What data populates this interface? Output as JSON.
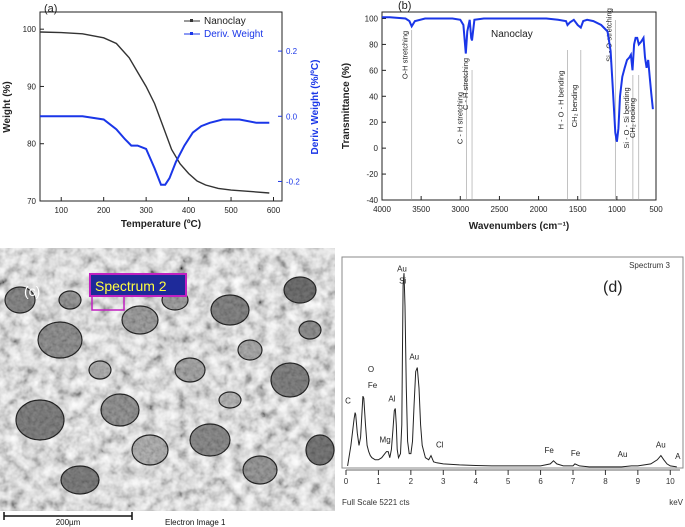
{
  "colors": {
    "black": "#222222",
    "blue": "#1a36e8",
    "darkblue": "#0a1fd0",
    "magenta": "#b000b0",
    "sem_bg": "#5a5a5a"
  },
  "chart_data": [
    {
      "panel_label": "(a)",
      "type": "line",
      "xlabel": "Temperature (ºC)",
      "ylabel": "Weight (%)",
      "y2label": "Deriv. Weight (%/ºC)",
      "xlim": [
        50,
        620
      ],
      "ylim": [
        70,
        103
      ],
      "y2lim": [
        -0.26,
        0.32
      ],
      "xticks": [
        100,
        200,
        300,
        400,
        500,
        600
      ],
      "yticks": [
        70,
        80,
        90,
        100
      ],
      "y2ticks": [
        0.2,
        0.0,
        -0.2
      ],
      "y2ticklabels": [
        "0.2",
        "0.0",
        "-0.2"
      ],
      "legend": [
        "Nanoclay",
        "Deriv. Weight"
      ],
      "legend_position": "top-right",
      "series": [
        {
          "name": "Nanoclay",
          "axis": "left",
          "x": [
            50,
            100,
            150,
            200,
            230,
            260,
            280,
            300,
            320,
            340,
            360,
            380,
            400,
            420,
            440,
            470,
            500,
            540,
            590
          ],
          "y": [
            99.5,
            99.4,
            99.2,
            98.5,
            97.5,
            95,
            92.5,
            90,
            87,
            83,
            79,
            76.5,
            74.8,
            73.5,
            72.8,
            72.2,
            71.9,
            71.7,
            71.4
          ]
        },
        {
          "name": "Deriv. Weight",
          "axis": "right",
          "x": [
            50,
            100,
            150,
            200,
            230,
            250,
            265,
            280,
            300,
            320,
            335,
            345,
            355,
            370,
            390,
            410,
            430,
            450,
            480,
            520,
            560,
            590
          ],
          "y": [
            0.0,
            0.0,
            0.0,
            -0.01,
            -0.04,
            -0.07,
            -0.09,
            -0.09,
            -0.1,
            -0.16,
            -0.21,
            -0.21,
            -0.19,
            -0.14,
            -0.09,
            -0.05,
            -0.03,
            -0.02,
            -0.01,
            -0.01,
            -0.02,
            -0.02
          ]
        }
      ]
    },
    {
      "panel_label": "(b)",
      "type": "line",
      "xlabel": "Wavenumbers (cm⁻¹)",
      "ylabel": "Transmittance (%)",
      "xlim": [
        4000,
        500
      ],
      "ylim": [
        -40,
        105
      ],
      "xticks": [
        4000,
        3500,
        3000,
        2500,
        2000,
        1500,
        1000,
        500
      ],
      "yticks": [
        100,
        80,
        60,
        40,
        20,
        0,
        -20,
        -40
      ],
      "series": [
        {
          "name": "Nanoclay",
          "x": [
            4000,
            3900,
            3700,
            3650,
            3620,
            3580,
            3450,
            3300,
            3100,
            3000,
            2960,
            2930,
            2910,
            2880,
            2860,
            2850,
            2820,
            2700,
            2500,
            2300,
            2100,
            1900,
            1750,
            1650,
            1630,
            1600,
            1550,
            1500,
            1460,
            1430,
            1380,
            1300,
            1200,
            1120,
            1080,
            1050,
            1020,
            1000,
            980,
            960,
            930,
            900,
            870,
            840,
            820,
            800,
            790,
            780,
            760,
            740,
            720,
            690,
            660,
            640,
            620,
            600,
            580,
            560,
            540
          ],
          "y": [
            101,
            101,
            100,
            98,
            94,
            98,
            100,
            100,
            100,
            99,
            95,
            73,
            90,
            99,
            85,
            83,
            99,
            100,
            100,
            100,
            100,
            100,
            99,
            98,
            95,
            97,
            99,
            95,
            93,
            98,
            99,
            98,
            95,
            90,
            75,
            45,
            12,
            5,
            15,
            40,
            55,
            62,
            68,
            70,
            72,
            60,
            70,
            80,
            85,
            85,
            80,
            82,
            85,
            70,
            62,
            68,
            55,
            42,
            30
          ]
        }
      ],
      "sample_label": "Nanoclay",
      "annotations": [
        {
          "text": "O-H stretching",
          "x": 3620
        },
        {
          "text": "C - H stretching",
          "x": 2920
        },
        {
          "text": "C - H stretching",
          "x": 2850
        },
        {
          "text": "H - O - H bending",
          "x": 1630
        },
        {
          "text": "CH₂ bending",
          "x": 1460
        },
        {
          "text": "Si - O stretching",
          "x": 1020
        },
        {
          "text": "Si - O - Si bending",
          "x": 795
        },
        {
          "text": "CH₂ rocking",
          "x": 720
        }
      ]
    },
    {
      "panel_label": "(d)",
      "type": "line",
      "title": "Spectrum 3",
      "xlabel": "keV",
      "xlim": [
        0,
        10.3
      ],
      "xticks": [
        0,
        1,
        2,
        3,
        4,
        5,
        6,
        7,
        8,
        9,
        10
      ],
      "footer": "Full Scale 5221 cts",
      "series": [
        {
          "name": "Spectrum 3",
          "x": [
            0.05,
            0.15,
            0.25,
            0.28,
            0.3,
            0.35,
            0.4,
            0.45,
            0.5,
            0.52,
            0.55,
            0.6,
            0.65,
            0.7,
            0.75,
            0.8,
            0.9,
            1.0,
            1.1,
            1.2,
            1.25,
            1.3,
            1.35,
            1.4,
            1.45,
            1.49,
            1.52,
            1.55,
            1.58,
            1.62,
            1.68,
            1.72,
            1.74,
            1.76,
            1.79,
            1.82,
            1.86,
            1.9,
            1.95,
            2.0,
            2.05,
            2.1,
            2.15,
            2.2,
            2.25,
            2.3,
            2.35,
            2.45,
            2.55,
            2.62,
            2.7,
            2.8,
            3.0,
            3.5,
            4.0,
            4.5,
            5.0,
            5.5,
            6.0,
            6.3,
            6.4,
            6.5,
            6.7,
            7.0,
            7.06,
            7.2,
            7.5,
            8.0,
            8.5,
            8.8,
            9.0,
            9.4,
            9.6,
            9.71,
            9.8,
            9.9,
            10.0,
            10.2
          ],
          "y": [
            0.02,
            0.12,
            0.25,
            0.28,
            0.27,
            0.18,
            0.12,
            0.16,
            0.3,
            0.36,
            0.35,
            0.22,
            0.12,
            0.09,
            0.07,
            0.06,
            0.05,
            0.05,
            0.06,
            0.08,
            0.09,
            0.09,
            0.06,
            0.1,
            0.2,
            0.29,
            0.3,
            0.22,
            0.1,
            0.06,
            0.08,
            0.22,
            0.55,
            0.9,
            0.96,
            0.8,
            0.4,
            0.14,
            0.08,
            0.08,
            0.14,
            0.32,
            0.48,
            0.5,
            0.4,
            0.22,
            0.12,
            0.06,
            0.05,
            0.07,
            0.04,
            0.035,
            0.03,
            0.025,
            0.022,
            0.02,
            0.02,
            0.02,
            0.02,
            0.03,
            0.045,
            0.03,
            0.02,
            0.02,
            0.03,
            0.02,
            0.015,
            0.015,
            0.015,
            0.02,
            0.02,
            0.03,
            0.05,
            0.07,
            0.05,
            0.03,
            0.02,
            0.015
          ]
        }
      ],
      "peaks": [
        {
          "text": "C",
          "x": 0.28
        },
        {
          "text": "O",
          "x": 0.52
        },
        {
          "text": "Fe",
          "x": 0.52
        },
        {
          "text": "Mg",
          "x": 1.25
        },
        {
          "text": "Al",
          "x": 1.49
        },
        {
          "text": "Au",
          "x": 1.76
        },
        {
          "text": "Si",
          "x": 1.76
        },
        {
          "text": "Au",
          "x": 2.2
        },
        {
          "text": "Cl",
          "x": 2.62
        },
        {
          "text": "Fe",
          "x": 6.4
        },
        {
          "text": "Fe",
          "x": 7.06
        },
        {
          "text": "Au",
          "x": 8.5
        },
        {
          "text": "Au",
          "x": 9.71
        },
        {
          "text": "A",
          "x": 10.15
        }
      ]
    }
  ],
  "sem": {
    "panel_label": "(c)",
    "spectrum_label": "Spectrum 2",
    "scale_label": "200µm",
    "image_label": "Electron Image 1"
  }
}
